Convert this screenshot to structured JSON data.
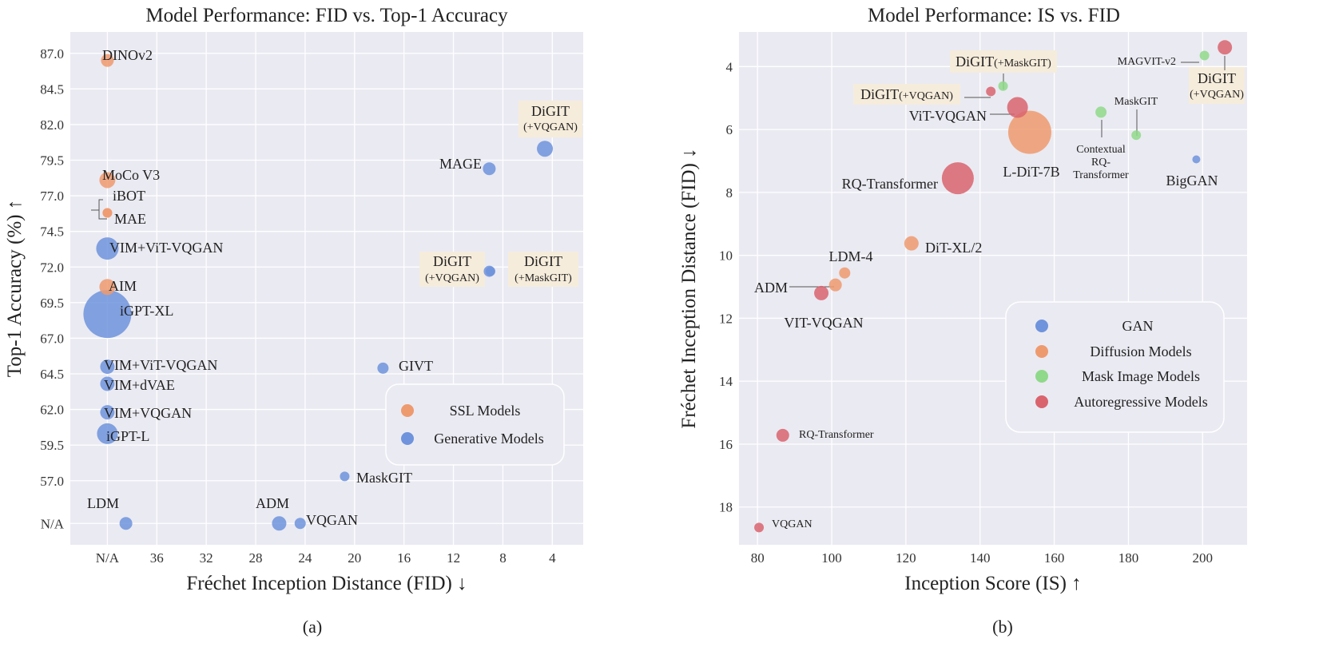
{
  "colors": {
    "ssl": "#EE9A6F",
    "generative": "#6F93DC",
    "gan": "#6F93DC",
    "diffusion": "#EE9A6F",
    "mask": "#8FD98A",
    "autoregressive": "#D9646E",
    "plot_bg": "#EAEAF2",
    "highlight": "#F6ECDB"
  },
  "chart_data": [
    {
      "type": "scatter",
      "title": "Model Performance: FID vs. Top-1 Accuracy",
      "xlabel": "Fréchet Inception Distance (FID) ↓",
      "ylabel": "Top-1 Accuracy (%) ↑",
      "subcaption": "(a)",
      "x_reversed": true,
      "x_tick_labels": [
        "N/A",
        "36",
        "32",
        "28",
        "24",
        "20",
        "16",
        "12",
        "8",
        "4"
      ],
      "x_ticks": [
        40,
        36,
        32,
        28,
        24,
        20,
        16,
        12,
        8,
        4
      ],
      "y_tick_labels": [
        "N/A",
        "57.0",
        "59.5",
        "62.0",
        "64.5",
        "67.0",
        "69.5",
        "72.0",
        "74.5",
        "77.0",
        "79.5",
        "82.0",
        "84.5",
        "87.0"
      ],
      "y_ticks": [
        54.0,
        57.0,
        59.5,
        62.0,
        64.5,
        67.0,
        69.5,
        72.0,
        74.5,
        77.0,
        79.5,
        82.0,
        84.5,
        87.0
      ],
      "xlim": [
        43,
        1.5
      ],
      "ylim": [
        52.5,
        88.5
      ],
      "legend": {
        "placement": "bottom-right",
        "entries": [
          {
            "label": "SSL Models",
            "color_key": "ssl"
          },
          {
            "label": "Generative Models",
            "color_key": "generative"
          }
        ]
      },
      "points": [
        {
          "label": "DINOv2",
          "x": 40,
          "y": 86.5,
          "size": 8,
          "group": "ssl"
        },
        {
          "label": "MoCo V3",
          "x": 40,
          "y": 78.1,
          "size": 10,
          "group": "ssl"
        },
        {
          "label": "iBOT",
          "x": 40,
          "y": 75.8,
          "size": 6,
          "group": "ssl"
        },
        {
          "label": "MAE",
          "x": 40,
          "y": 75.8,
          "size": 6,
          "group": "ssl"
        },
        {
          "label": "VIM+ViT-VQGAN",
          "x": 40,
          "y": 73.3,
          "size": 14,
          "group": "generative"
        },
        {
          "label": "AIM",
          "x": 40,
          "y": 70.6,
          "size": 10,
          "group": "ssl"
        },
        {
          "label": "iGPT-XL",
          "x": 40,
          "y": 68.7,
          "size": 30,
          "group": "generative"
        },
        {
          "label": "VIM+ViT-VQGAN",
          "x": 40,
          "y": 65.0,
          "size": 9,
          "group": "generative"
        },
        {
          "label": "VIM+dVAE",
          "x": 40,
          "y": 63.8,
          "size": 9,
          "group": "generative"
        },
        {
          "label": "VIM+VQGAN",
          "x": 40,
          "y": 61.8,
          "size": 9,
          "group": "generative"
        },
        {
          "label": "iGPT-L",
          "x": 40,
          "y": 60.3,
          "size": 13,
          "group": "generative"
        },
        {
          "label": "LDM",
          "x": 38.5,
          "y": 54.0,
          "size": 8,
          "group": "generative"
        },
        {
          "label": "ADM",
          "x": 26.1,
          "y": 54.0,
          "size": 9,
          "group": "generative"
        },
        {
          "label": "VQGAN",
          "x": 24.4,
          "y": 54.0,
          "size": 7,
          "group": "generative"
        },
        {
          "label": "MaskGIT",
          "x": 20.8,
          "y": 57.3,
          "size": 6,
          "group": "generative"
        },
        {
          "label": "GIVT",
          "x": 17.7,
          "y": 64.9,
          "size": 7,
          "group": "generative"
        },
        {
          "label": "MAGE",
          "x": 9.1,
          "y": 78.9,
          "size": 8,
          "group": "generative"
        },
        {
          "label": "DiGIT",
          "sublabel": "(+VQGAN)",
          "x": 4.6,
          "y": 80.3,
          "size": 10,
          "group": "generative",
          "highlight": true
        },
        {
          "label": "DiGIT",
          "sublabel": "(+VQGAN)",
          "x": 9.1,
          "y": 71.7,
          "size": 7,
          "group": "generative",
          "highlight": true
        },
        {
          "label": "DiGIT",
          "sublabel": "(+MaskGIT)",
          "x": 9.0,
          "y": 71.7,
          "size": 6,
          "group": "generative",
          "highlight": true
        }
      ]
    },
    {
      "type": "scatter",
      "title": "Model Performance: IS vs. FID",
      "xlabel": "Inception Score (IS) ↑",
      "ylabel": "Fréchet Inception Distance (FID) ↓",
      "subcaption": "(b)",
      "y_reversed": true,
      "x_tick_labels": [
        "80",
        "100",
        "120",
        "140",
        "160",
        "180",
        "200"
      ],
      "x_ticks": [
        80,
        100,
        120,
        140,
        160,
        180,
        200
      ],
      "y_tick_labels": [
        "4",
        "6",
        "8",
        "10",
        "12",
        "14",
        "16",
        "18"
      ],
      "y_ticks": [
        4,
        6,
        8,
        10,
        12,
        14,
        16,
        18
      ],
      "xlim": [
        75,
        212
      ],
      "ylim": [
        2.9,
        19.2
      ],
      "legend": {
        "placement": "center-right",
        "entries": [
          {
            "label": "GAN",
            "color_key": "gan"
          },
          {
            "label": "Diffusion Models",
            "color_key": "diffusion"
          },
          {
            "label": "Mask Image Models",
            "color_key": "mask"
          },
          {
            "label": "Autoregressive Models",
            "color_key": "autoregressive"
          }
        ]
      },
      "points": [
        {
          "label": "MAGVIT-v2",
          "x": 200.5,
          "y": 3.65,
          "size": 6,
          "group": "mask"
        },
        {
          "label": "DiGIT",
          "sublabel": "(+VQGAN)",
          "x": 206,
          "y": 3.39,
          "size": 9,
          "group": "autoregressive",
          "highlight": true
        },
        {
          "label": "DiGIT",
          "sublabel": "(+MaskGIT)",
          "x": 146.2,
          "y": 4.62,
          "size": 6,
          "group": "mask",
          "highlight": true
        },
        {
          "label": "DiGIT",
          "sublabel": "(+VQGAN)",
          "x": 142.9,
          "y": 4.79,
          "size": 6,
          "group": "autoregressive",
          "highlight": true
        },
        {
          "label": "ViT-VQGAN",
          "x": 150.1,
          "y": 5.3,
          "size": 13,
          "group": "autoregressive"
        },
        {
          "label": "L-DiT-7B",
          "x": 153.4,
          "y": 6.09,
          "size": 27,
          "group": "diffusion"
        },
        {
          "label": "MaskGIT",
          "x": 182.1,
          "y": 6.18,
          "size": 6,
          "group": "mask"
        },
        {
          "label": "Contextual RQ-Transformer",
          "x": 172.6,
          "y": 5.45,
          "size": 7,
          "group": "mask"
        },
        {
          "label": "BigGAN",
          "x": 198.3,
          "y": 6.95,
          "size": 5,
          "group": "gan"
        },
        {
          "label": "RQ-Transformer",
          "x": 134.0,
          "y": 7.55,
          "size": 20,
          "group": "autoregressive"
        },
        {
          "label": "DiT-XL/2",
          "x": 121.5,
          "y": 9.62,
          "size": 9,
          "group": "diffusion"
        },
        {
          "label": "LDM-4",
          "x": 103.5,
          "y": 10.56,
          "size": 7,
          "group": "diffusion"
        },
        {
          "label": "ADM",
          "x": 101.0,
          "y": 10.94,
          "size": 8,
          "group": "diffusion"
        },
        {
          "label": "VIT-VQGAN",
          "x": 97.2,
          "y": 11.2,
          "size": 9,
          "group": "autoregressive"
        },
        {
          "label": "RQ-Transformer",
          "x": 86.8,
          "y": 15.72,
          "size": 8,
          "group": "autoregressive"
        },
        {
          "label": "VQGAN",
          "x": 80.4,
          "y": 18.65,
          "size": 6,
          "group": "autoregressive"
        }
      ]
    }
  ]
}
